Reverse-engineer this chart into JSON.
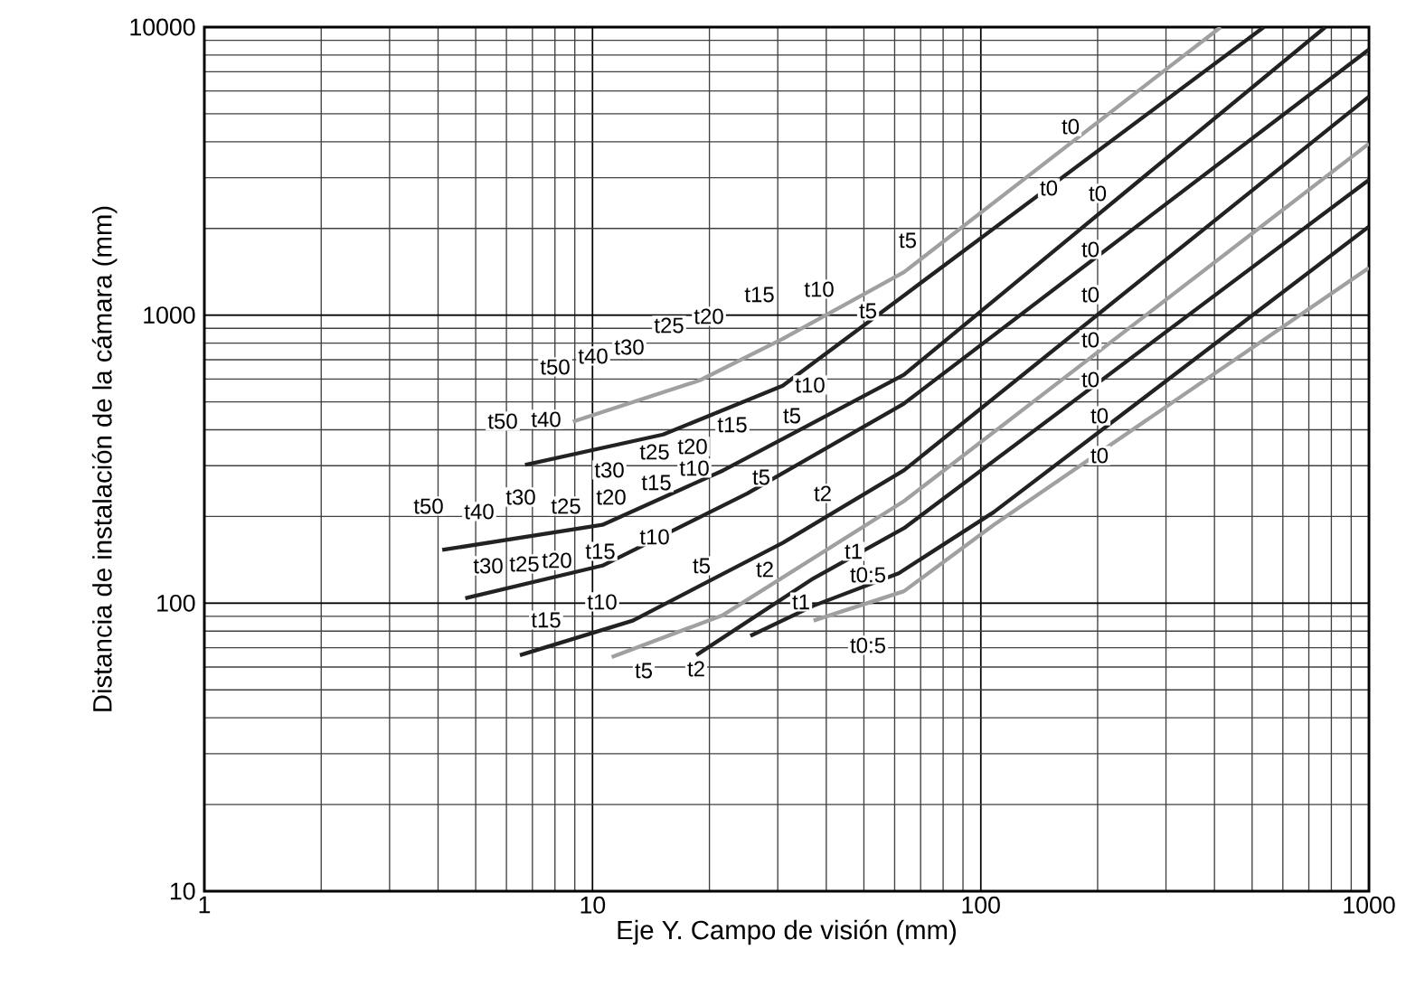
{
  "chart_data": {
    "type": "line",
    "xlabel": "Eje Y. Campo de visión (mm)",
    "ylabel": "Distancia de instalación de la cámara (mm)",
    "log": "xy",
    "grid": true,
    "xlim": [
      1,
      1000
    ],
    "ylim": [
      10,
      10000
    ],
    "xticks": [
      1,
      10,
      100,
      1000
    ],
    "yticks": [
      10,
      100,
      1000,
      10000
    ],
    "series": [
      {
        "color": "#a0a0a0",
        "x": [
          8.9,
          18.9,
          30.9,
          63.4,
          415
        ],
        "values": [
          427,
          594,
          828,
          1410,
          10000
        ]
      },
      {
        "color": "#222222",
        "x": [
          6.7,
          15.2,
          30.9,
          63.4,
          536
        ],
        "values": [
          302,
          385,
          569,
          1170,
          10000
        ]
      },
      {
        "color": "#222222",
        "x": [
          4.1,
          10.6,
          21.7,
          63.4,
          772
        ],
        "values": [
          153,
          187,
          289,
          621,
          10000
        ]
      },
      {
        "color": "#222222",
        "x": [
          4.7,
          10.6,
          25.0,
          63.4,
          1000
        ],
        "values": [
          104,
          135,
          240,
          493,
          8360
        ]
      },
      {
        "color": "#222222",
        "x": [
          6.5,
          12.7,
          30.9,
          63.4,
          1000
        ],
        "values": [
          66,
          87,
          162,
          289,
          5740
        ]
      },
      {
        "color": "#a0a0a0",
        "x": [
          11.2,
          21.7,
          63.4,
          1000
        ],
        "values": [
          65,
          91,
          226,
          3940
        ]
      },
      {
        "color": "#222222",
        "x": [
          18.5,
          37.1,
          63.4,
          1000
        ],
        "values": [
          66,
          122,
          182,
          2950
        ]
      },
      {
        "color": "#222222",
        "x": [
          25.5,
          37.1,
          61.5,
          108,
          1000
        ],
        "values": [
          77,
          98,
          127,
          207,
          2030
        ]
      },
      {
        "color": "#a0a0a0",
        "x": [
          37.1,
          63.4,
          108,
          1000
        ],
        "values": [
          87,
          110,
          187,
          1460
        ]
      }
    ],
    "annotations": [
      "t15",
      "t10",
      "t5",
      "t20",
      "t25",
      "t30",
      "t40",
      "t50",
      "t10",
      "t5",
      "t15",
      "t20",
      "t25",
      "t30",
      "t40",
      "t50",
      "t10",
      "t15",
      "t20",
      "t25",
      "t30",
      "t40",
      "t50",
      "t5",
      "t2",
      "t10",
      "t15",
      "t20",
      "t25",
      "t30",
      "t5",
      "t2",
      "t1",
      "t0:5",
      "t10",
      "t15",
      "t1",
      "t0:5",
      "t5",
      "t2",
      "t0",
      "t0",
      "t0",
      "t5",
      "t0",
      "t0",
      "t0",
      "t0",
      "t0",
      "t0"
    ]
  }
}
